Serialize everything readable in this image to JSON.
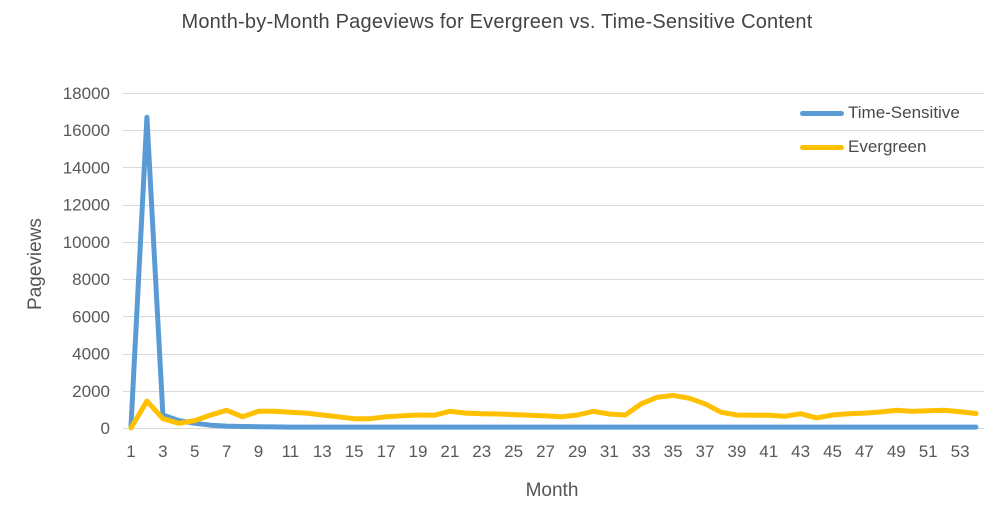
{
  "chart_data": {
    "type": "line",
    "title": "Month-by-Month Pageviews for Evergreen vs. Time-Sensitive Content",
    "xlabel": "Month",
    "ylabel": "Pageviews",
    "x": [
      1,
      2,
      3,
      4,
      5,
      6,
      7,
      8,
      9,
      10,
      11,
      12,
      13,
      14,
      15,
      16,
      17,
      18,
      19,
      20,
      21,
      22,
      23,
      24,
      25,
      26,
      27,
      28,
      29,
      30,
      31,
      32,
      33,
      34,
      35,
      36,
      37,
      38,
      39,
      40,
      41,
      42,
      43,
      44,
      45,
      46,
      47,
      48,
      49,
      50,
      51,
      52,
      53,
      54
    ],
    "series": [
      {
        "name": "Time-Sensitive",
        "color": "#5B9BD5",
        "values": [
          100,
          16700,
          700,
          400,
          250,
          150,
          100,
          80,
          70,
          60,
          50,
          50,
          50,
          50,
          50,
          50,
          50,
          50,
          50,
          50,
          50,
          50,
          50,
          50,
          50,
          50,
          50,
          50,
          50,
          50,
          50,
          50,
          50,
          50,
          50,
          50,
          50,
          50,
          50,
          50,
          50,
          50,
          50,
          50,
          50,
          50,
          50,
          50,
          50,
          50,
          50,
          50,
          50,
          50
        ]
      },
      {
        "name": "Evergreen",
        "color": "#FFC000",
        "values": [
          0,
          1450,
          500,
          250,
          400,
          700,
          950,
          600,
          900,
          900,
          850,
          800,
          700,
          600,
          500,
          500,
          600,
          650,
          700,
          680,
          900,
          800,
          770,
          750,
          720,
          680,
          650,
          600,
          700,
          900,
          750,
          700,
          1300,
          1650,
          1750,
          1600,
          1300,
          850,
          700,
          680,
          680,
          630,
          770,
          540,
          700,
          770,
          800,
          860,
          950,
          890,
          930,
          950,
          870,
          780
        ]
      }
    ],
    "ylim": [
      0,
      18000
    ],
    "yticks": [
      0,
      2000,
      4000,
      6000,
      8000,
      10000,
      12000,
      14000,
      16000,
      18000
    ],
    "xticks": [
      1,
      3,
      5,
      7,
      9,
      11,
      13,
      15,
      17,
      19,
      21,
      23,
      25,
      27,
      29,
      31,
      33,
      35,
      37,
      39,
      41,
      43,
      45,
      47,
      49,
      51,
      53
    ],
    "grid": "horizontal",
    "legend_position": "top-right",
    "colors": {
      "gridline": "#D9D9D9",
      "axis_line": "#D9D9D9",
      "tick_label": "#595959",
      "title_text": "#444444"
    }
  }
}
